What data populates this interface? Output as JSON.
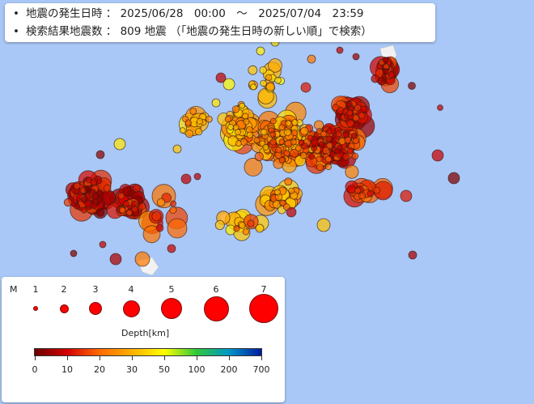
{
  "info": {
    "line1_label": "地震の発生日時",
    "line1_sep": "：",
    "line1_value": "2025/06/28　00:00　～　2025/07/04　23:59",
    "line2_label": "検索結果地震数",
    "line2_sep": "：",
    "line2_value": "809 地震 （「地震の発生日時の新しい順」で検索）"
  },
  "legend": {
    "mag_title": "M",
    "mag_labels": [
      "1",
      "2",
      "3",
      "4",
      "5",
      "6",
      "7"
    ],
    "marker_color": "#ff0000",
    "depth_title": "Depth[km]",
    "depth_ticks": [
      "0",
      "10",
      "20",
      "30",
      "50",
      "100",
      "200",
      "700"
    ],
    "depth_colors": [
      "#6b0000",
      "#d40000",
      "#ff6a00",
      "#ffb000",
      "#ffff00",
      "#2ec83a",
      "#0096c8",
      "#001a9e"
    ]
  },
  "map": {
    "water_color": "#a9c8f7",
    "land_color": "#f2f2f2",
    "shown_events_approx": 640
  }
}
